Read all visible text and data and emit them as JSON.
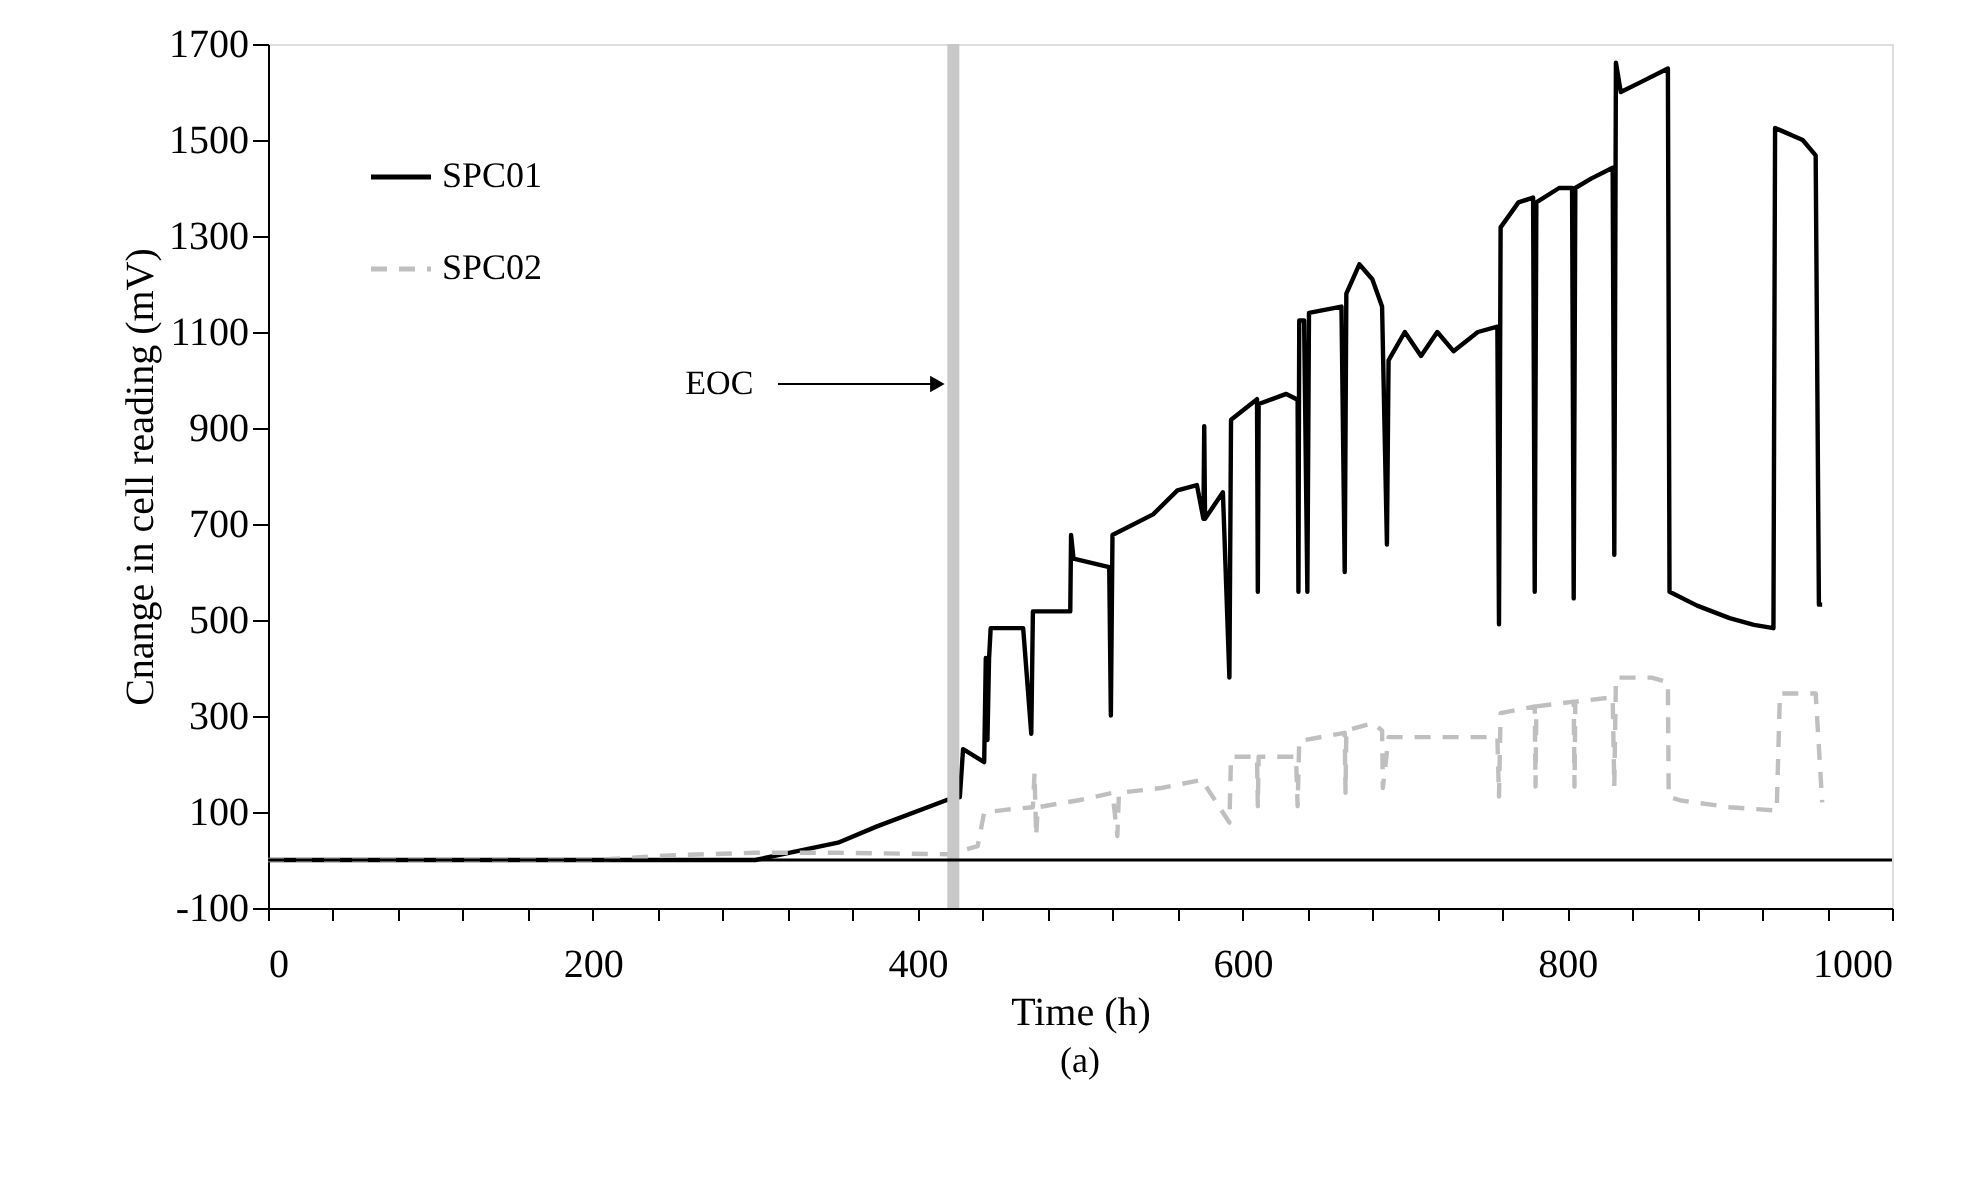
{
  "chart_data": {
    "type": "line",
    "xlabel": "Time (h)",
    "ylabel": "Cnange in cell reading (mV)",
    "xlim": [
      0,
      1000
    ],
    "ylim": [
      -100,
      1700
    ],
    "xticks": [
      0,
      {
        "value": 40,
        "label": null
      },
      {
        "value": 80,
        "label": null
      },
      {
        "value": 120,
        "label": null
      },
      {
        "value": 160,
        "label": null
      },
      200,
      {
        "value": 240,
        "label": null
      },
      {
        "value": 280,
        "label": null
      },
      {
        "value": 320,
        "label": null
      },
      {
        "value": 360,
        "label": null
      },
      400,
      {
        "value": 440,
        "label": null
      },
      {
        "value": 480,
        "label": null
      },
      {
        "value": 520,
        "label": null
      },
      {
        "value": 560,
        "label": null
      },
      600,
      {
        "value": 640,
        "label": null
      },
      {
        "value": 680,
        "label": null
      },
      {
        "value": 720,
        "label": null
      },
      {
        "value": 760,
        "label": null
      },
      800,
      {
        "value": 840,
        "label": null
      },
      {
        "value": 880,
        "label": null
      },
      {
        "value": 920,
        "label": null
      },
      {
        "value": 960,
        "label": null
      },
      1000
    ],
    "yticks": [
      -100,
      100,
      300,
      500,
      700,
      900,
      1100,
      1300,
      1500,
      1700
    ],
    "grid": false,
    "legend": "top left",
    "marker": "none",
    "series": [
      {
        "name": "SPC01",
        "color": "#000000",
        "line_style": "solid",
        "x": [
          0,
          100,
          200,
          300,
          351,
          375,
          418,
          426,
          428,
          441,
          442,
          443,
          444,
          445,
          465,
          470,
          471,
          494,
          494.5,
          496,
          518,
          519,
          520,
          545,
          560,
          572,
          576,
          576.5,
          577,
          588,
          592,
          593,
          609,
          609.5,
          610,
          627,
          634,
          634.5,
          635,
          638,
          640,
          641,
          661,
          663,
          664,
          672,
          680,
          686,
          689,
          690,
          700,
          710,
          720,
          730,
          745,
          757,
          758,
          759,
          770,
          779,
          780,
          781,
          795,
          803,
          804,
          805,
          815,
          828,
          829,
          830,
          833,
          845,
          862,
          863,
          880,
          900,
          915,
          927,
          928,
          945,
          953,
          955,
          957
        ],
        "values": [
          0,
          0,
          0,
          0,
          36,
          70,
          125,
          131,
          231,
          204,
          421,
          250,
          420,
          483,
          483,
          263,
          518,
          518,
          677,
          628,
          610,
          301,
          677,
          720,
          770,
          781,
          711,
          904,
          711,
          766,
          380,
          917,
          960,
          559,
          950,
          971,
          959,
          559,
          1124,
          1124,
          559,
          1140,
          1153,
          600,
          1180,
          1241,
          1210,
          1153,
          657,
          1041,
          1100,
          1050,
          1100,
          1060,
          1100,
          1111,
          491,
          1318,
          1370,
          1380,
          559,
          1370,
          1400,
          1400,
          545,
          1400,
          1420,
          1442,
          636,
          1661,
          1600,
          1620,
          1649,
          559,
          530,
          504,
          490,
          483,
          1525,
          1500,
          1468,
          532,
          532
        ]
      },
      {
        "name": "SPC02",
        "color": "#bfbfbf",
        "line_style": "dashed",
        "x": [
          0,
          100,
          200,
          250,
          300,
          350,
          420,
          437,
          441,
          455,
          471,
          472,
          473,
          474,
          500,
          520,
          523,
          524,
          550,
          575,
          592,
          593,
          609,
          609.5,
          610,
          633,
          634,
          635,
          663,
          663.5,
          664,
          680,
          686,
          686.5,
          690,
          757,
          758,
          759,
          780,
          780.5,
          781,
          804,
          804.5,
          805,
          828,
          829,
          830,
          852,
          862,
          862.5,
          870,
          900,
          929,
          931,
          953,
          957
        ],
        "values": [
          0,
          0,
          0,
          10,
          15,
          15,
          12,
          29,
          99,
          105,
          110,
          182,
          50,
          110,
          125,
          140,
          50,
          140,
          150,
          167,
          78,
          215,
          215,
          112,
          215,
          215,
          112,
          248,
          265,
          140,
          270,
          285,
          270,
          150,
          256,
          256,
          132,
          306,
          320,
          153,
          320,
          330,
          153,
          330,
          339,
          153,
          380,
          380,
          370,
          132,
          124,
          110,
          103,
          347,
          347,
          120
        ]
      }
    ],
    "ref_lines": [
      {
        "axis": "x",
        "value": 422,
        "label": "EOC",
        "color": "#c8c8c8"
      },
      {
        "axis": "y",
        "value": 0,
        "color": "#000000"
      }
    ],
    "annotations": [
      "(a)"
    ]
  }
}
